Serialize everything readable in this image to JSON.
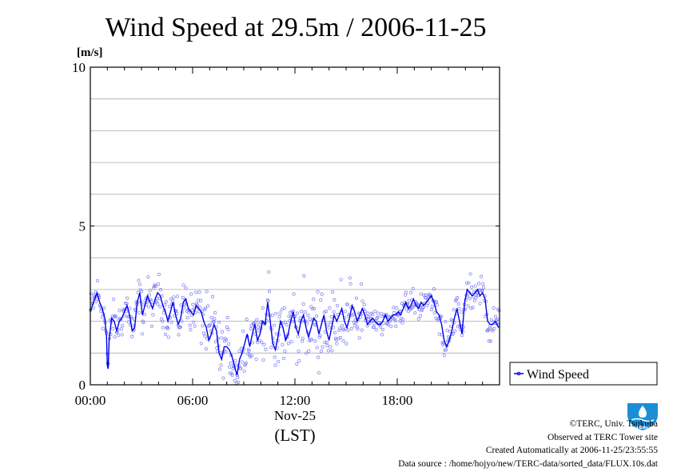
{
  "chart_data": {
    "type": "scatter",
    "title": "Wind Speed at 29.5m / 2006-11-25",
    "ylabel": "[m/s]",
    "ylim": [
      0,
      10
    ],
    "xlim_hours": [
      0,
      24
    ],
    "y_ticks": [
      0,
      5,
      10
    ],
    "y_grid": [
      1,
      2,
      3,
      4,
      5,
      6,
      7,
      8,
      9
    ],
    "x_ticks": [
      {
        "hour": 0,
        "label": "00:00"
      },
      {
        "hour": 6,
        "label": "06:00"
      },
      {
        "hour": 12,
        "label": "12:00"
      },
      {
        "hour": 18,
        "label": "18:00"
      }
    ],
    "x_date_label": "Nov-25",
    "x_zone_label": "(LST)",
    "grid": true,
    "legend": {
      "position": "right",
      "entries": [
        "Wind Speed"
      ]
    },
    "colors": {
      "line": "#0000ee",
      "points": "#7b7bf5",
      "grid": "#aaaaaa"
    },
    "series": [
      {
        "name": "Wind Speed",
        "points": [
          [
            0.0,
            2.3
          ],
          [
            0.25,
            2.7
          ],
          [
            0.4,
            2.9
          ],
          [
            0.55,
            2.6
          ],
          [
            0.7,
            2.4
          ],
          [
            0.85,
            2.1
          ],
          [
            0.95,
            1.5
          ],
          [
            1.0,
            0.6
          ],
          [
            1.05,
            0.5
          ],
          [
            1.1,
            1.4
          ],
          [
            1.25,
            2.1
          ],
          [
            1.4,
            2.0
          ],
          [
            1.55,
            1.7
          ],
          [
            1.7,
            2.0
          ],
          [
            1.85,
            2.1
          ],
          [
            2.0,
            2.3
          ],
          [
            2.15,
            2.5
          ],
          [
            2.3,
            2.2
          ],
          [
            2.45,
            1.7
          ],
          [
            2.6,
            1.8
          ],
          [
            2.75,
            2.6
          ],
          [
            2.9,
            2.9
          ],
          [
            3.05,
            2.2
          ],
          [
            3.2,
            2.5
          ],
          [
            3.35,
            2.8
          ],
          [
            3.5,
            2.6
          ],
          [
            3.65,
            2.4
          ],
          [
            3.8,
            2.7
          ],
          [
            3.95,
            2.9
          ],
          [
            4.1,
            2.8
          ],
          [
            4.25,
            2.5
          ],
          [
            4.4,
            2.3
          ],
          [
            4.55,
            2.0
          ],
          [
            4.7,
            2.3
          ],
          [
            4.85,
            2.6
          ],
          [
            5.0,
            2.2
          ],
          [
            5.15,
            1.9
          ],
          [
            5.3,
            2.1
          ],
          [
            5.45,
            2.6
          ],
          [
            5.6,
            2.7
          ],
          [
            5.75,
            2.4
          ],
          [
            5.9,
            2.3
          ],
          [
            6.05,
            2.2
          ],
          [
            6.2,
            2.5
          ],
          [
            6.35,
            2.4
          ],
          [
            6.5,
            2.3
          ],
          [
            6.65,
            2.0
          ],
          [
            6.8,
            1.8
          ],
          [
            6.95,
            1.4
          ],
          [
            7.1,
            1.6
          ],
          [
            7.25,
            1.9
          ],
          [
            7.4,
            1.7
          ],
          [
            7.55,
            1.0
          ],
          [
            7.7,
            0.8
          ],
          [
            7.85,
            1.2
          ],
          [
            8.0,
            1.2
          ],
          [
            8.15,
            1.1
          ],
          [
            8.3,
            0.9
          ],
          [
            8.45,
            0.6
          ],
          [
            8.6,
            0.3
          ],
          [
            8.75,
            0.8
          ],
          [
            8.9,
            1.0
          ],
          [
            9.05,
            1.3
          ],
          [
            9.2,
            1.6
          ],
          [
            9.35,
            1.2
          ],
          [
            9.5,
            1.6
          ],
          [
            9.65,
            1.9
          ],
          [
            9.8,
            1.4
          ],
          [
            9.95,
            1.6
          ],
          [
            10.1,
            2.0
          ],
          [
            10.25,
            1.9
          ],
          [
            10.4,
            2.6
          ],
          [
            10.55,
            2.0
          ],
          [
            10.7,
            1.3
          ],
          [
            10.85,
            1.1
          ],
          [
            11.0,
            1.5
          ],
          [
            11.15,
            2.0
          ],
          [
            11.3,
            1.8
          ],
          [
            11.45,
            1.4
          ],
          [
            11.6,
            1.6
          ],
          [
            11.75,
            2.0
          ],
          [
            11.9,
            2.3
          ],
          [
            12.05,
            1.8
          ],
          [
            12.2,
            1.6
          ],
          [
            12.35,
            2.0
          ],
          [
            12.5,
            2.2
          ],
          [
            12.65,
            1.8
          ],
          [
            12.8,
            1.5
          ],
          [
            12.95,
            1.8
          ],
          [
            13.1,
            2.1
          ],
          [
            13.25,
            2.0
          ],
          [
            13.4,
            1.6
          ],
          [
            13.55,
            1.9
          ],
          [
            13.7,
            2.2
          ],
          [
            13.85,
            1.7
          ],
          [
            14.0,
            1.4
          ],
          [
            14.15,
            1.8
          ],
          [
            14.3,
            2.2
          ],
          [
            14.45,
            2.0
          ],
          [
            14.6,
            2.2
          ],
          [
            14.75,
            2.4
          ],
          [
            14.9,
            2.0
          ],
          [
            15.05,
            1.8
          ],
          [
            15.2,
            2.1
          ],
          [
            15.35,
            2.5
          ],
          [
            15.5,
            2.3
          ],
          [
            15.65,
            2.0
          ],
          [
            15.8,
            2.2
          ],
          [
            15.95,
            2.4
          ],
          [
            16.1,
            2.2
          ],
          [
            16.25,
            1.9
          ],
          [
            16.4,
            2.0
          ],
          [
            16.55,
            2.1
          ],
          [
            16.7,
            2.0
          ],
          [
            16.85,
            1.9
          ],
          [
            17.0,
            1.9
          ],
          [
            17.15,
            2.0
          ],
          [
            17.3,
            2.2
          ],
          [
            17.45,
            2.0
          ],
          [
            17.6,
            2.1
          ],
          [
            17.75,
            2.2
          ],
          [
            17.9,
            2.2
          ],
          [
            18.05,
            2.3
          ],
          [
            18.2,
            2.2
          ],
          [
            18.35,
            2.4
          ],
          [
            18.5,
            2.6
          ],
          [
            18.65,
            2.4
          ],
          [
            18.8,
            2.5
          ],
          [
            18.95,
            2.7
          ],
          [
            19.1,
            2.5
          ],
          [
            19.25,
            2.4
          ],
          [
            19.4,
            2.6
          ],
          [
            19.55,
            2.5
          ],
          [
            19.7,
            2.6
          ],
          [
            19.85,
            2.7
          ],
          [
            20.0,
            2.8
          ],
          [
            20.15,
            2.6
          ],
          [
            20.3,
            2.3
          ],
          [
            20.45,
            2.2
          ],
          [
            20.6,
            1.9
          ],
          [
            20.75,
            1.4
          ],
          [
            20.9,
            1.2
          ],
          [
            21.05,
            1.4
          ],
          [
            21.2,
            1.7
          ],
          [
            21.35,
            2.1
          ],
          [
            21.5,
            2.4
          ],
          [
            21.65,
            2.0
          ],
          [
            21.8,
            1.6
          ],
          [
            21.95,
            2.6
          ],
          [
            22.1,
            3.0
          ],
          [
            22.25,
            2.9
          ],
          [
            22.4,
            2.8
          ],
          [
            22.55,
            2.9
          ],
          [
            22.7,
            3.0
          ],
          [
            22.85,
            2.8
          ],
          [
            23.0,
            2.9
          ],
          [
            23.15,
            2.7
          ],
          [
            23.3,
            2.0
          ],
          [
            23.45,
            1.9
          ],
          [
            23.6,
            1.9
          ],
          [
            23.75,
            2.0
          ],
          [
            23.95,
            1.8
          ]
        ]
      }
    ]
  },
  "credits": {
    "copyright": "©TERC, Univ. Tsukuba",
    "observed": "Observed at TERC Tower site",
    "created": "Created Automatically at 2006-11-25/23:55:55",
    "source": "Data source : /home/hojyo/new/TERC-data/sorted_data/FLUX.10s.dat"
  },
  "logo": {
    "text": "TERC",
    "icon": "terc-logo-icon",
    "color": "#1a8fd6"
  }
}
